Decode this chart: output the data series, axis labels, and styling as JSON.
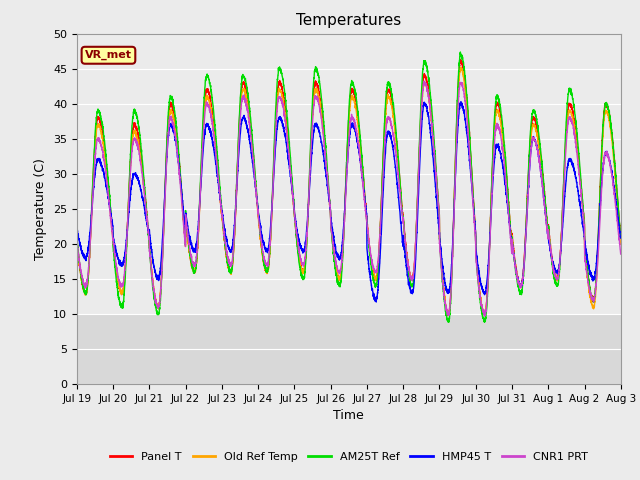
{
  "title": "Temperatures",
  "xlabel": "Time",
  "ylabel": "Temperature (C)",
  "ylim": [
    0,
    50
  ],
  "yticks": [
    0,
    5,
    10,
    15,
    20,
    25,
    30,
    35,
    40,
    45,
    50
  ],
  "xtick_labels": [
    "Jul 19",
    "Jul 20",
    "Jul 21",
    "Jul 22",
    "Jul 23",
    "Jul 24",
    "Jul 25",
    "Jul 26",
    "Jul 27",
    "Jul 28",
    "Jul 29",
    "Jul 30",
    "Jul 31",
    "Aug 1",
    "Aug 2",
    "Aug 3"
  ],
  "annotation_text": "VR_met",
  "annotation_box_color": "#FFFFA0",
  "annotation_box_edge": "#8B0000",
  "plot_bg_color": "#EBEBEB",
  "fig_bg_color": "#EBEBEB",
  "lower_band_color": "#D8D8D8",
  "lines": {
    "Panel T": {
      "color": "#FF0000",
      "lw": 1.0
    },
    "Old Ref Temp": {
      "color": "#FFA500",
      "lw": 1.0
    },
    "AM25T Ref": {
      "color": "#00DD00",
      "lw": 1.0
    },
    "HMP45 T": {
      "color": "#0000FF",
      "lw": 1.0
    },
    "CNR1 PRT": {
      "color": "#CC44CC",
      "lw": 1.0
    }
  },
  "n_days": 15,
  "points_per_day": 288,
  "day_peaks": {
    "Panel T": [
      38,
      37,
      40,
      42,
      43,
      43,
      43,
      42,
      42,
      44,
      46,
      40,
      38,
      40,
      40
    ],
    "Old Ref Temp": [
      37,
      36,
      39,
      41,
      42,
      42,
      42,
      41,
      41,
      43,
      45,
      39,
      37,
      39,
      39
    ],
    "AM25T Ref": [
      39,
      39,
      41,
      44,
      44,
      45,
      45,
      43,
      43,
      46,
      47,
      41,
      39,
      42,
      40
    ],
    "HMP45 T": [
      32,
      30,
      37,
      37,
      38,
      38,
      37,
      37,
      36,
      40,
      40,
      34,
      35,
      32,
      33
    ],
    "CNR1 PRT": [
      35,
      35,
      38,
      40,
      41,
      41,
      41,
      38,
      38,
      43,
      43,
      37,
      35,
      38,
      33
    ]
  },
  "day_mins": {
    "Panel T": [
      13,
      13,
      11,
      16,
      16,
      16,
      16,
      15,
      15,
      15,
      10,
      10,
      14,
      15,
      12
    ],
    "Old Ref Temp": [
      13,
      13,
      11,
      16,
      16,
      16,
      16,
      15,
      15,
      15,
      10,
      10,
      14,
      15,
      11
    ],
    "AM25T Ref": [
      13,
      11,
      10,
      16,
      16,
      16,
      15,
      14,
      14,
      14,
      9,
      9,
      13,
      14,
      12
    ],
    "HMP45 T": [
      18,
      17,
      15,
      19,
      19,
      19,
      19,
      18,
      12,
      13,
      13,
      13,
      14,
      16,
      15
    ],
    "CNR1 PRT": [
      14,
      14,
      11,
      17,
      17,
      17,
      17,
      16,
      16,
      15,
      10,
      10,
      14,
      15,
      12
    ]
  }
}
